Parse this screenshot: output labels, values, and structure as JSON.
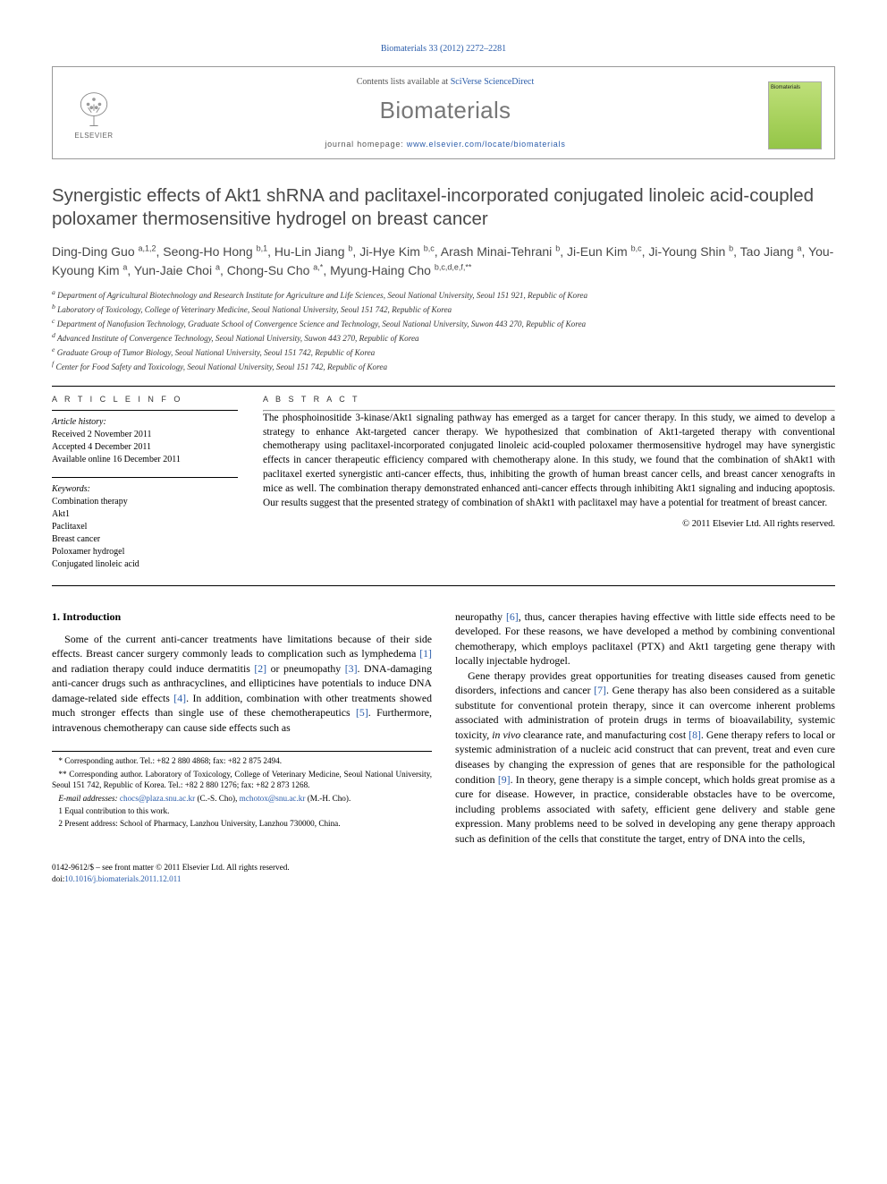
{
  "citation": "Biomaterials 33 (2012) 2272–2281",
  "header": {
    "contents_prefix": "Contents lists available at ",
    "contents_link": "SciVerse ScienceDirect",
    "journal": "Biomaterials",
    "homepage_prefix": "journal homepage: ",
    "homepage_url": "www.elsevier.com/locate/biomaterials",
    "publisher_logo_text": "ELSEVIER",
    "cover_text": "Biomaterials"
  },
  "title": "Synergistic effects of Akt1 shRNA and paclitaxel-incorporated conjugated linoleic acid-coupled poloxamer thermosensitive hydrogel on breast cancer",
  "authors_html": "Ding-Ding Guo <sup>a,1,2</sup>, Seong-Ho Hong <sup>b,1</sup>, Hu-Lin Jiang <sup>b</sup>, Ji-Hye Kim <sup>b,c</sup>, Arash Minai-Tehrani <sup>b</sup>, Ji-Eun Kim <sup>b,c</sup>, Ji-Young Shin <sup>b</sup>, Tao Jiang <sup>a</sup>, You-Kyoung Kim <sup>a</sup>, Yun-Jaie Choi <sup>a</sup>, Chong-Su Cho <sup>a,*</sup>, Myung-Haing Cho <sup>b,c,d,e,f,**</sup>",
  "affiliations": [
    "a Department of Agricultural Biotechnology and Research Institute for Agriculture and Life Sciences, Seoul National University, Seoul 151 921, Republic of Korea",
    "b Laboratory of Toxicology, College of Veterinary Medicine, Seoul National University, Seoul 151 742, Republic of Korea",
    "c Department of Nanofusion Technology, Graduate School of Convergence Science and Technology, Seoul National University, Suwon 443 270, Republic of Korea",
    "d Advanced Institute of Convergence Technology, Seoul National University, Suwon 443 270, Republic of Korea",
    "e Graduate Group of Tumor Biology, Seoul National University, Seoul 151 742, Republic of Korea",
    "f Center for Food Safety and Toxicology, Seoul National University, Seoul 151 742, Republic of Korea"
  ],
  "article_info": {
    "heading": "A R T I C L E   I N F O",
    "history_label": "Article history:",
    "received": "Received 2 November 2011",
    "accepted": "Accepted 4 December 2011",
    "online": "Available online 16 December 2011",
    "keywords_label": "Keywords:",
    "keywords": [
      "Combination therapy",
      "Akt1",
      "Paclitaxel",
      "Breast cancer",
      "Poloxamer hydrogel",
      "Conjugated linoleic acid"
    ]
  },
  "abstract": {
    "heading": "A B S T R A C T",
    "text": "The phosphoinositide 3-kinase/Akt1 signaling pathway has emerged as a target for cancer therapy. In this study, we aimed to develop a strategy to enhance Akt-targeted cancer therapy. We hypothesized that combination of Akt1-targeted therapy with conventional chemotherapy using paclitaxel-incorporated conjugated linoleic acid-coupled poloxamer thermosensitive hydrogel may have synergistic effects in cancer therapeutic efficiency compared with chemotherapy alone. In this study, we found that the combination of shAkt1 with paclitaxel exerted synergistic anti-cancer effects, thus, inhibiting the growth of human breast cancer cells, and breast cancer xenografts in mice as well. The combination therapy demonstrated enhanced anti-cancer effects through inhibiting Akt1 signaling and inducing apoptosis. Our results suggest that the presented strategy of combination of shAkt1 with paclitaxel may have a potential for treatment of breast cancer.",
    "copyright": "© 2011 Elsevier Ltd. All rights reserved."
  },
  "body": {
    "section_heading": "1. Introduction",
    "col1_p1": "Some of the current anti-cancer treatments have limitations because of their side effects. Breast cancer surgery commonly leads to complication such as lymphedema [1] and radiation therapy could induce dermatitis [2] or pneumopathy [3]. DNA-damaging anti-cancer drugs such as anthracyclines, and ellipticines have potentials to induce DNA damage-related side effects [4]. In addition, combination with other treatments showed much stronger effects than single use of these chemotherapeutics [5]. Furthermore, intravenous chemotherapy can cause side effects such as",
    "col2_p1": "neuropathy [6], thus, cancer therapies having effective with little side effects need to be developed. For these reasons, we have developed a method by combining conventional chemotherapy, which employs paclitaxel (PTX) and Akt1 targeting gene therapy with locally injectable hydrogel.",
    "col2_p2": "Gene therapy provides great opportunities for treating diseases caused from genetic disorders, infections and cancer [7]. Gene therapy has also been considered as a suitable substitute for conventional protein therapy, since it can overcome inherent problems associated with administration of protein drugs in terms of bioavailability, systemic toxicity, in vivo clearance rate, and manufacturing cost [8]. Gene therapy refers to local or systemic administration of a nucleic acid construct that can prevent, treat and even cure diseases by changing the expression of genes that are responsible for the pathological condition [9]. In theory, gene therapy is a simple concept, which holds great promise as a cure for disease. However, in practice, considerable obstacles have to be overcome, including problems associated with safety, efficient gene delivery and stable gene expression. Many problems need to be solved in developing any gene therapy approach such as definition of the cells that constitute the target, entry of DNA into the cells,"
  },
  "footnotes": {
    "f1": "* Corresponding author. Tel.: +82 2 880 4868; fax: +82 2 875 2494.",
    "f2": "** Corresponding author. Laboratory of Toxicology, College of Veterinary Medicine, Seoul National University, Seoul 151 742, Republic of Korea. Tel.: +82 2 880 1276; fax: +82 2 873 1268.",
    "f3_label": "E-mail addresses: ",
    "f3_a": "chocs@plaza.snu.ac.kr",
    "f3_mid": " (C.-S. Cho), ",
    "f3_b": "mchotox@snu.ac.kr",
    "f3_end": " (M.-H. Cho).",
    "f4": "1 Equal contribution to this work.",
    "f5": "2 Present address: School of Pharmacy, Lanzhou University, Lanzhou 730000, China."
  },
  "bottom": {
    "line1": "0142-9612/$ – see front matter © 2011 Elsevier Ltd. All rights reserved.",
    "doi_label": "doi:",
    "doi": "10.1016/j.biomaterials.2011.12.011"
  },
  "colors": {
    "link": "#2a5caa",
    "title_gray": "#484848",
    "light_gray": "#777"
  }
}
